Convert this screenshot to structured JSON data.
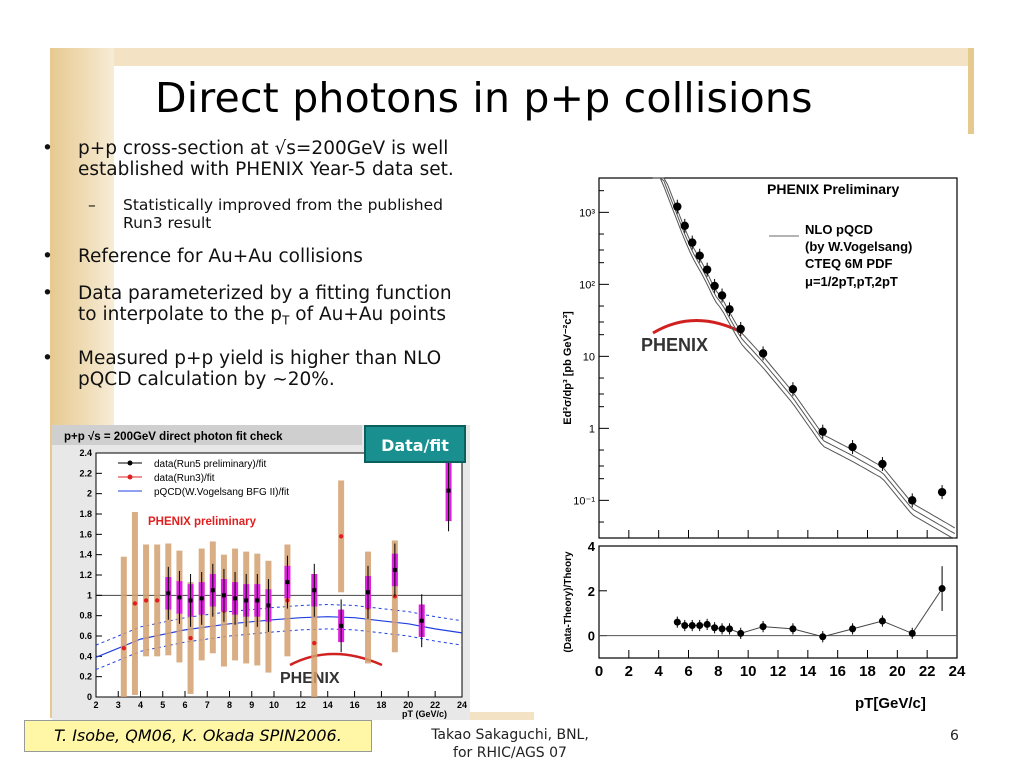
{
  "slide": {
    "title": "Direct photons in p+p collisions",
    "page_number": "6",
    "footer_author_line1": "Takao Sakaguchi, BNL,",
    "footer_author_line2": "for RHIC/AGS 07",
    "citation": "T. Isobe, QM06, K. Okada SPIN2006."
  },
  "bullets": [
    {
      "text_line1": "p+p cross-section at √s=200GeV is well",
      "text_line2": "established with PHENIX Year-5 data set."
    },
    {
      "text": "Reference for Au+Au collisions"
    },
    {
      "text_line1": "Data parameterized by a fitting function",
      "text_line2_a": "to interpolate to the p",
      "text_line2_sub": "T",
      "text_line2_b": " of Au+Au points"
    },
    {
      "text_line1": "Measured p+p yield is higher than NLO",
      "text_line2": "pQCD calculation by ~20%."
    }
  ],
  "sub_bullets": [
    {
      "text_line1": "Statistically improved from the published",
      "text_line2": "Run3 result"
    }
  ],
  "callout": {
    "label": "Data/fit"
  },
  "chart_data": [
    {
      "type": "scatter",
      "header": "PHENIX Preliminary",
      "ylabel_top": "Ed³σ/dp³ [pb GeV⁻²c³]",
      "ylabel_bottom": "(Data-Theory)/Theory",
      "xlabel": "pT[GeV/c]",
      "legend": [
        "NLO pQCD",
        "(by W.Vogelsang)",
        "CTEQ 6M PDF",
        "μ=1/2pT,pT,2pT"
      ],
      "logo": "PHENIX",
      "xlim": [
        0,
        24
      ],
      "ylim_log": [
        0.03,
        3000
      ],
      "ylim_ratio": [
        -1,
        4
      ],
      "x_ticks": [
        "0",
        "2",
        "4",
        "6",
        "8",
        "10",
        "12",
        "14",
        "16",
        "18",
        "20",
        "22",
        "24"
      ],
      "y_ticks_log": [
        "10³",
        "10²",
        "10",
        "1",
        "10⁻¹"
      ],
      "y_ticks_ratio": [
        "0",
        "2",
        "4"
      ],
      "cross_section": {
        "x": [
          5.25,
          5.75,
          6.25,
          6.75,
          7.25,
          7.75,
          8.25,
          8.75,
          9.5,
          11,
          13,
          15,
          17,
          19,
          21,
          23
        ],
        "y": [
          1200,
          650,
          380,
          250,
          160,
          95,
          70,
          45,
          24,
          11,
          3.5,
          0.9,
          0.55,
          0.32,
          0.1,
          0.13
        ]
      },
      "ratio": {
        "x": [
          5.25,
          5.75,
          6.25,
          6.75,
          7.25,
          7.75,
          8.25,
          8.75,
          9.5,
          11,
          13,
          15,
          17,
          19,
          21,
          23
        ],
        "y": [
          0.6,
          0.45,
          0.45,
          0.45,
          0.5,
          0.35,
          0.3,
          0.3,
          0.1,
          0.4,
          0.3,
          -0.05,
          0.3,
          0.65,
          0.1,
          2.1
        ]
      }
    },
    {
      "type": "scatter",
      "title": "p+p √s = 200GeV direct photon fit check",
      "xlabel": "pT (GeV/c)",
      "annotation": "PHENIX preliminary",
      "logo": "PHENIX",
      "xlim": [
        2,
        24
      ],
      "ylim": [
        0,
        2.4
      ],
      "x_ticks": [
        "2",
        "3",
        "4",
        "5",
        "6",
        "7",
        "8",
        "9",
        "10",
        "12",
        "14",
        "16",
        "18",
        "20",
        "22",
        "24"
      ],
      "y_ticks": [
        "0",
        "0.2",
        "0.4",
        "0.6",
        "0.8",
        "1",
        "1.2",
        "1.4",
        "1.6",
        "1.8",
        "2",
        "2.2",
        "2.4"
      ],
      "legend": [
        "data(Run5 preliminary)/fit",
        "data(Run3)/fit",
        "pQCD(W.Vogelsang BFG II)/fit"
      ],
      "series": [
        {
          "name": "data(Run5 preliminary)/fit",
          "x": [
            5.25,
            5.75,
            6.25,
            6.75,
            7.25,
            7.75,
            8.25,
            8.75,
            9.25,
            9.75,
            11,
            13,
            15,
            17,
            19,
            21,
            23
          ],
          "y": [
            1.02,
            0.98,
            0.95,
            0.97,
            1.05,
            1.0,
            0.97,
            0.95,
            0.95,
            0.9,
            1.13,
            1.05,
            0.7,
            1.03,
            1.25,
            0.75,
            2.03
          ]
        },
        {
          "name": "data(Run3)/fit",
          "x": [
            3.25,
            3.75,
            4.25,
            4.75,
            5.25,
            5.75,
            6.25,
            6.75,
            7.25,
            7.75,
            8.25,
            8.75,
            9.25,
            9.75,
            11,
            13,
            15,
            17,
            19
          ],
          "y": [
            0.48,
            0.92,
            0.95,
            0.95,
            0.96,
            0.89,
            0.58,
            0.91,
            0.98,
            0.85,
            0.91,
            0.88,
            0.86,
            0.79,
            0.95,
            0.53,
            1.58,
            0.88,
            0.99
          ]
        },
        {
          "name": "pQCD(W.Vogelsang BFG II)/fit",
          "x": [
            2,
            4,
            6,
            8,
            10,
            12,
            14,
            16,
            18,
            20,
            22,
            24
          ],
          "y": [
            0.39,
            0.57,
            0.66,
            0.72,
            0.76,
            0.78,
            0.79,
            0.78,
            0.75,
            0.72,
            0.67,
            0.63
          ]
        }
      ]
    }
  ],
  "colors": {
    "accent": "#1a8f8f",
    "deco": "#f3e3c4",
    "citation_bg": "#fff6a6",
    "run3": "#e02020",
    "pqcd": "#2040e0",
    "run5_band": "#e020e0",
    "run3_band": "#d4a070"
  }
}
